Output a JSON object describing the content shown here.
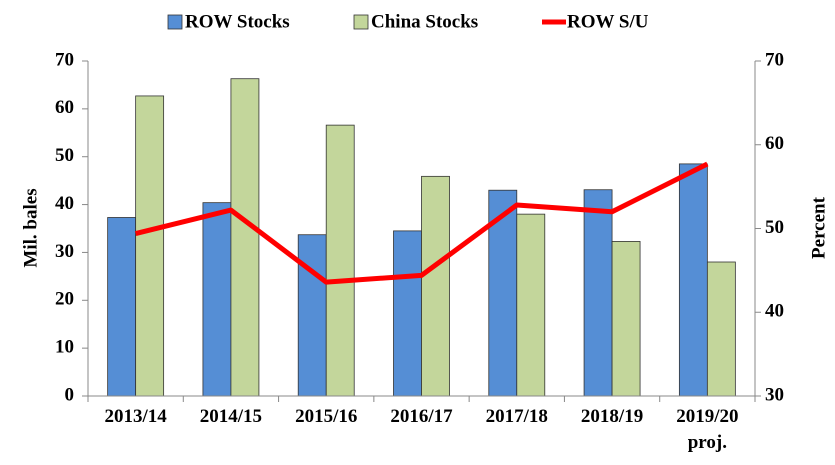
{
  "chart_data": {
    "type": "bar-line",
    "ylabel": "Mil. bales",
    "y2label": "Percent",
    "categories": [
      "2013/14",
      "2014/15",
      "2015/16",
      "2016/17",
      "2017/18",
      "2018/19",
      "2019/20 proj."
    ],
    "series": [
      {
        "name": "ROW Stocks",
        "type": "bar",
        "color": "#558ed5",
        "values": [
          37.3,
          40.4,
          33.7,
          34.5,
          43.0,
          43.1,
          48.5
        ]
      },
      {
        "name": "China Stocks",
        "type": "bar",
        "color": "#c3d69b",
        "values": [
          62.7,
          66.3,
          56.6,
          45.9,
          38.0,
          32.3,
          28.0
        ]
      },
      {
        "name": "ROW S/U",
        "type": "line",
        "axis": "y2",
        "color": "#ff0000",
        "values": [
          49.4,
          52.2,
          43.6,
          44.4,
          52.8,
          52.0,
          57.7
        ]
      }
    ],
    "ylim": [
      0,
      70
    ],
    "yticks": [
      0,
      10,
      20,
      30,
      40,
      50,
      60,
      70
    ],
    "y2lim": [
      30,
      70
    ],
    "y2ticks": [
      30,
      40,
      50,
      60,
      70
    ]
  }
}
